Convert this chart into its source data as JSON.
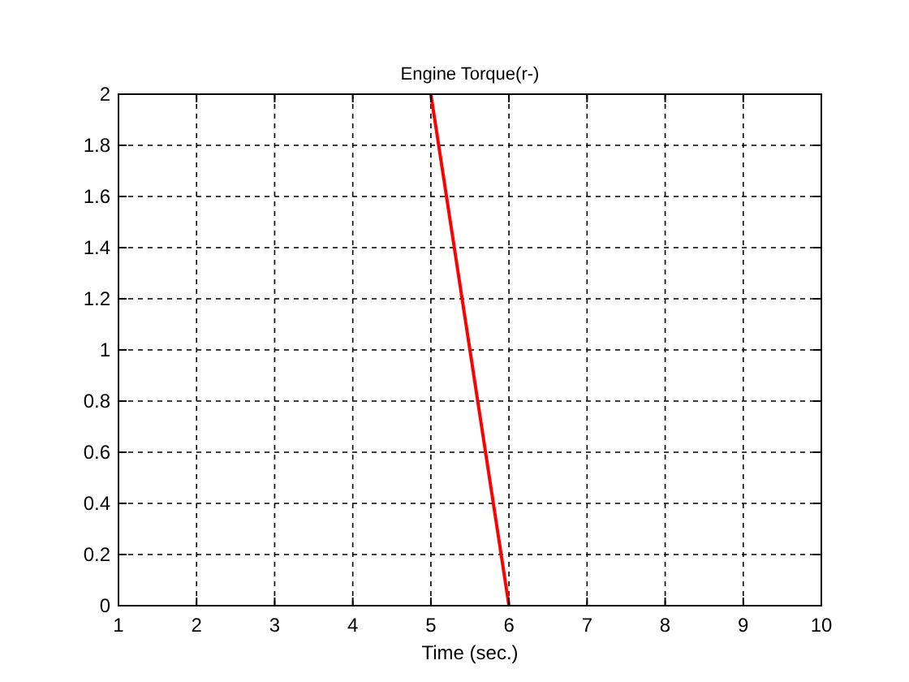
{
  "chart_data": {
    "type": "line",
    "title": "Engine Torque(r-)",
    "xlabel": "Time (sec.)",
    "series": [
      {
        "color": "#ff0000",
        "x": [
          5,
          6
        ],
        "values": [
          2,
          0
        ]
      }
    ],
    "xlim": [
      1,
      10
    ],
    "xticks": [
      1,
      2,
      3,
      4,
      5,
      6,
      7,
      8,
      9,
      10
    ],
    "ylim": [
      0,
      2
    ],
    "yticks": [
      0,
      {
        "value": 0.2,
        "label": "0.2"
      },
      {
        "value": 0.4,
        "label": "0.4"
      },
      {
        "value": 0.6,
        "label": "0.6"
      },
      {
        "value": 0.8,
        "label": "0.8"
      },
      1,
      {
        "value": 1.2,
        "label": "1.2"
      },
      {
        "value": 1.4,
        "label": "1.4"
      },
      {
        "value": 1.6,
        "label": "1.6"
      },
      {
        "value": 1.8,
        "label": "1.8"
      },
      2
    ],
    "grid": true,
    "marker": "none",
    "line_style": "solid"
  }
}
